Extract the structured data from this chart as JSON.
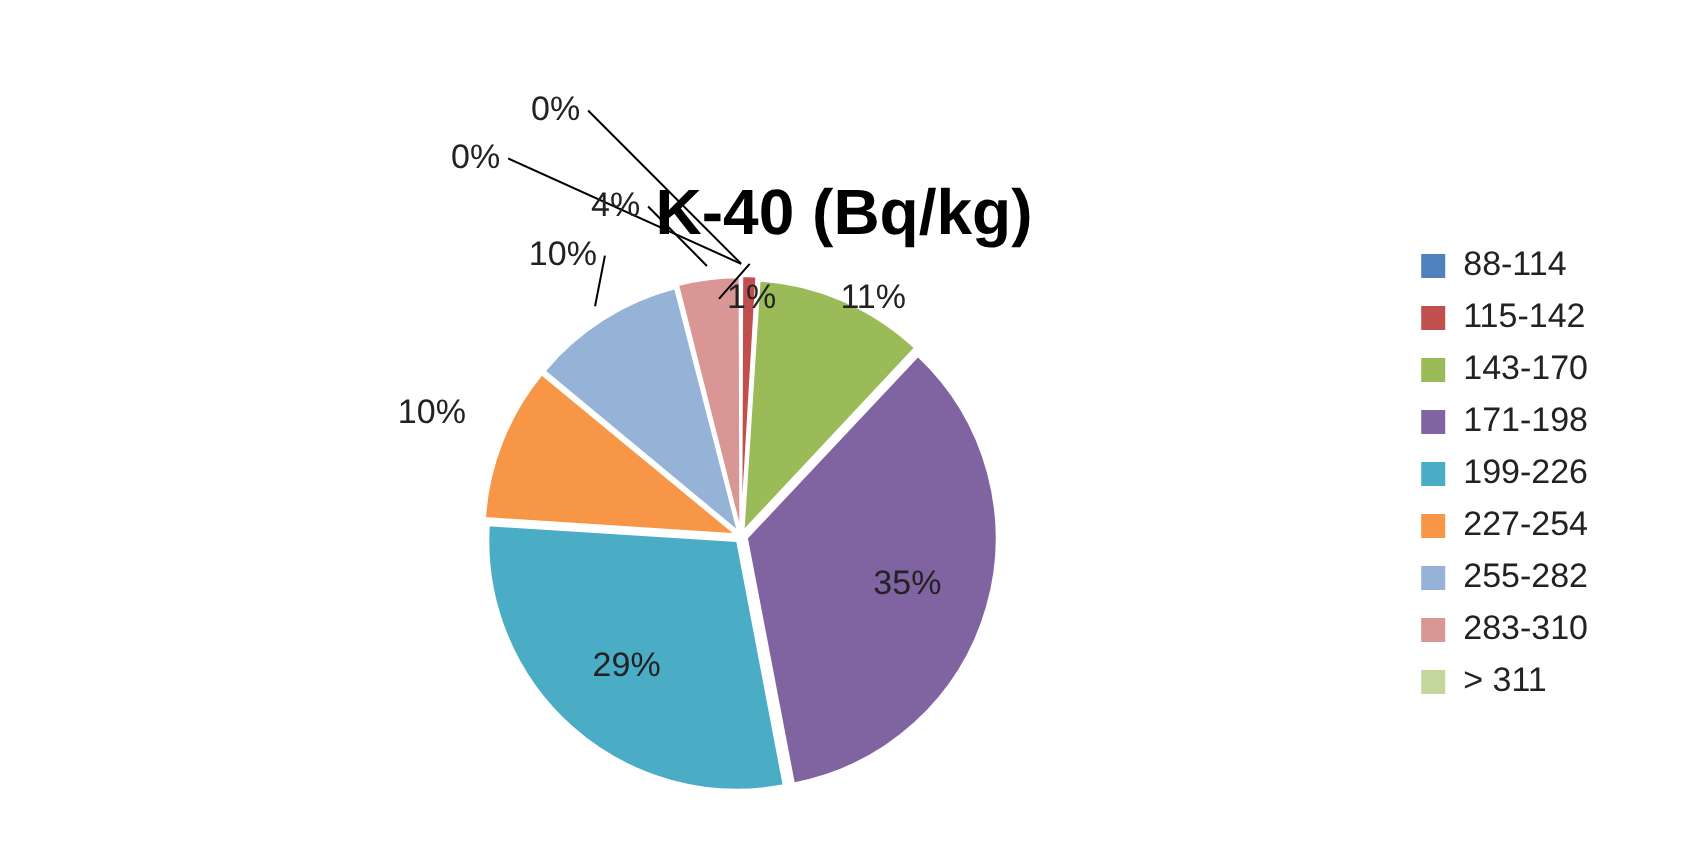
{
  "chart_data": {
    "type": "pie",
    "title": "K-40 (Bq/kg)",
    "categories": [
      "88-114",
      "115-142",
      "143-170",
      "171-198",
      "199-226",
      "227-254",
      "255-282",
      "283-310",
      "> 311"
    ],
    "values": [
      0,
      1,
      11,
      35,
      29,
      10,
      10,
      4,
      0
    ],
    "value_labels": [
      "0%",
      "1%",
      "11%",
      "35%",
      "29%",
      "10%",
      "10%",
      "4%",
      "0%"
    ],
    "colors": [
      "#4f81bd",
      "#c0504d",
      "#9bbb59",
      "#8064a2",
      "#4bacc6",
      "#f79646",
      "#95b3d7",
      "#d99694",
      "#c3d69b"
    ],
    "legend": "right"
  }
}
